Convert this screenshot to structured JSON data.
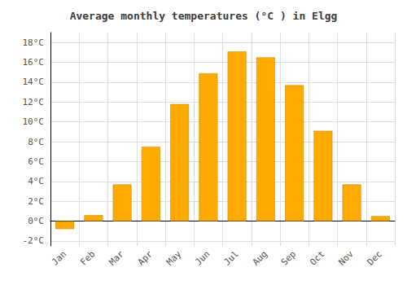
{
  "chart_data": {
    "type": "bar",
    "title": "Average monthly temperatures (°C ) in Elgg",
    "categories": [
      "Jan",
      "Feb",
      "Mar",
      "Apr",
      "May",
      "Jun",
      "Jul",
      "Aug",
      "Sep",
      "Oct",
      "Nov",
      "Dec"
    ],
    "values": [
      -0.8,
      0.6,
      3.7,
      7.5,
      11.8,
      14.9,
      17.1,
      16.5,
      13.7,
      9.1,
      3.7,
      0.5
    ],
    "color": "#FFAA00",
    "ylim": [
      -2.5,
      19
    ],
    "yticks": [
      {
        "value": -2,
        "label": "-2°C"
      },
      {
        "value": 0,
        "label": "0°C"
      },
      {
        "value": 2,
        "label": "2°C"
      },
      {
        "value": 4,
        "label": "4°C"
      },
      {
        "value": 6,
        "label": "6°C"
      },
      {
        "value": 8,
        "label": "8°C"
      },
      {
        "value": 10,
        "label": "10°C"
      },
      {
        "value": 12,
        "label": "12°C"
      },
      {
        "value": 14,
        "label": "14°C"
      },
      {
        "value": 16,
        "label": "16°C"
      },
      {
        "value": 18,
        "label": "18°C"
      }
    ],
    "grid": true
  }
}
